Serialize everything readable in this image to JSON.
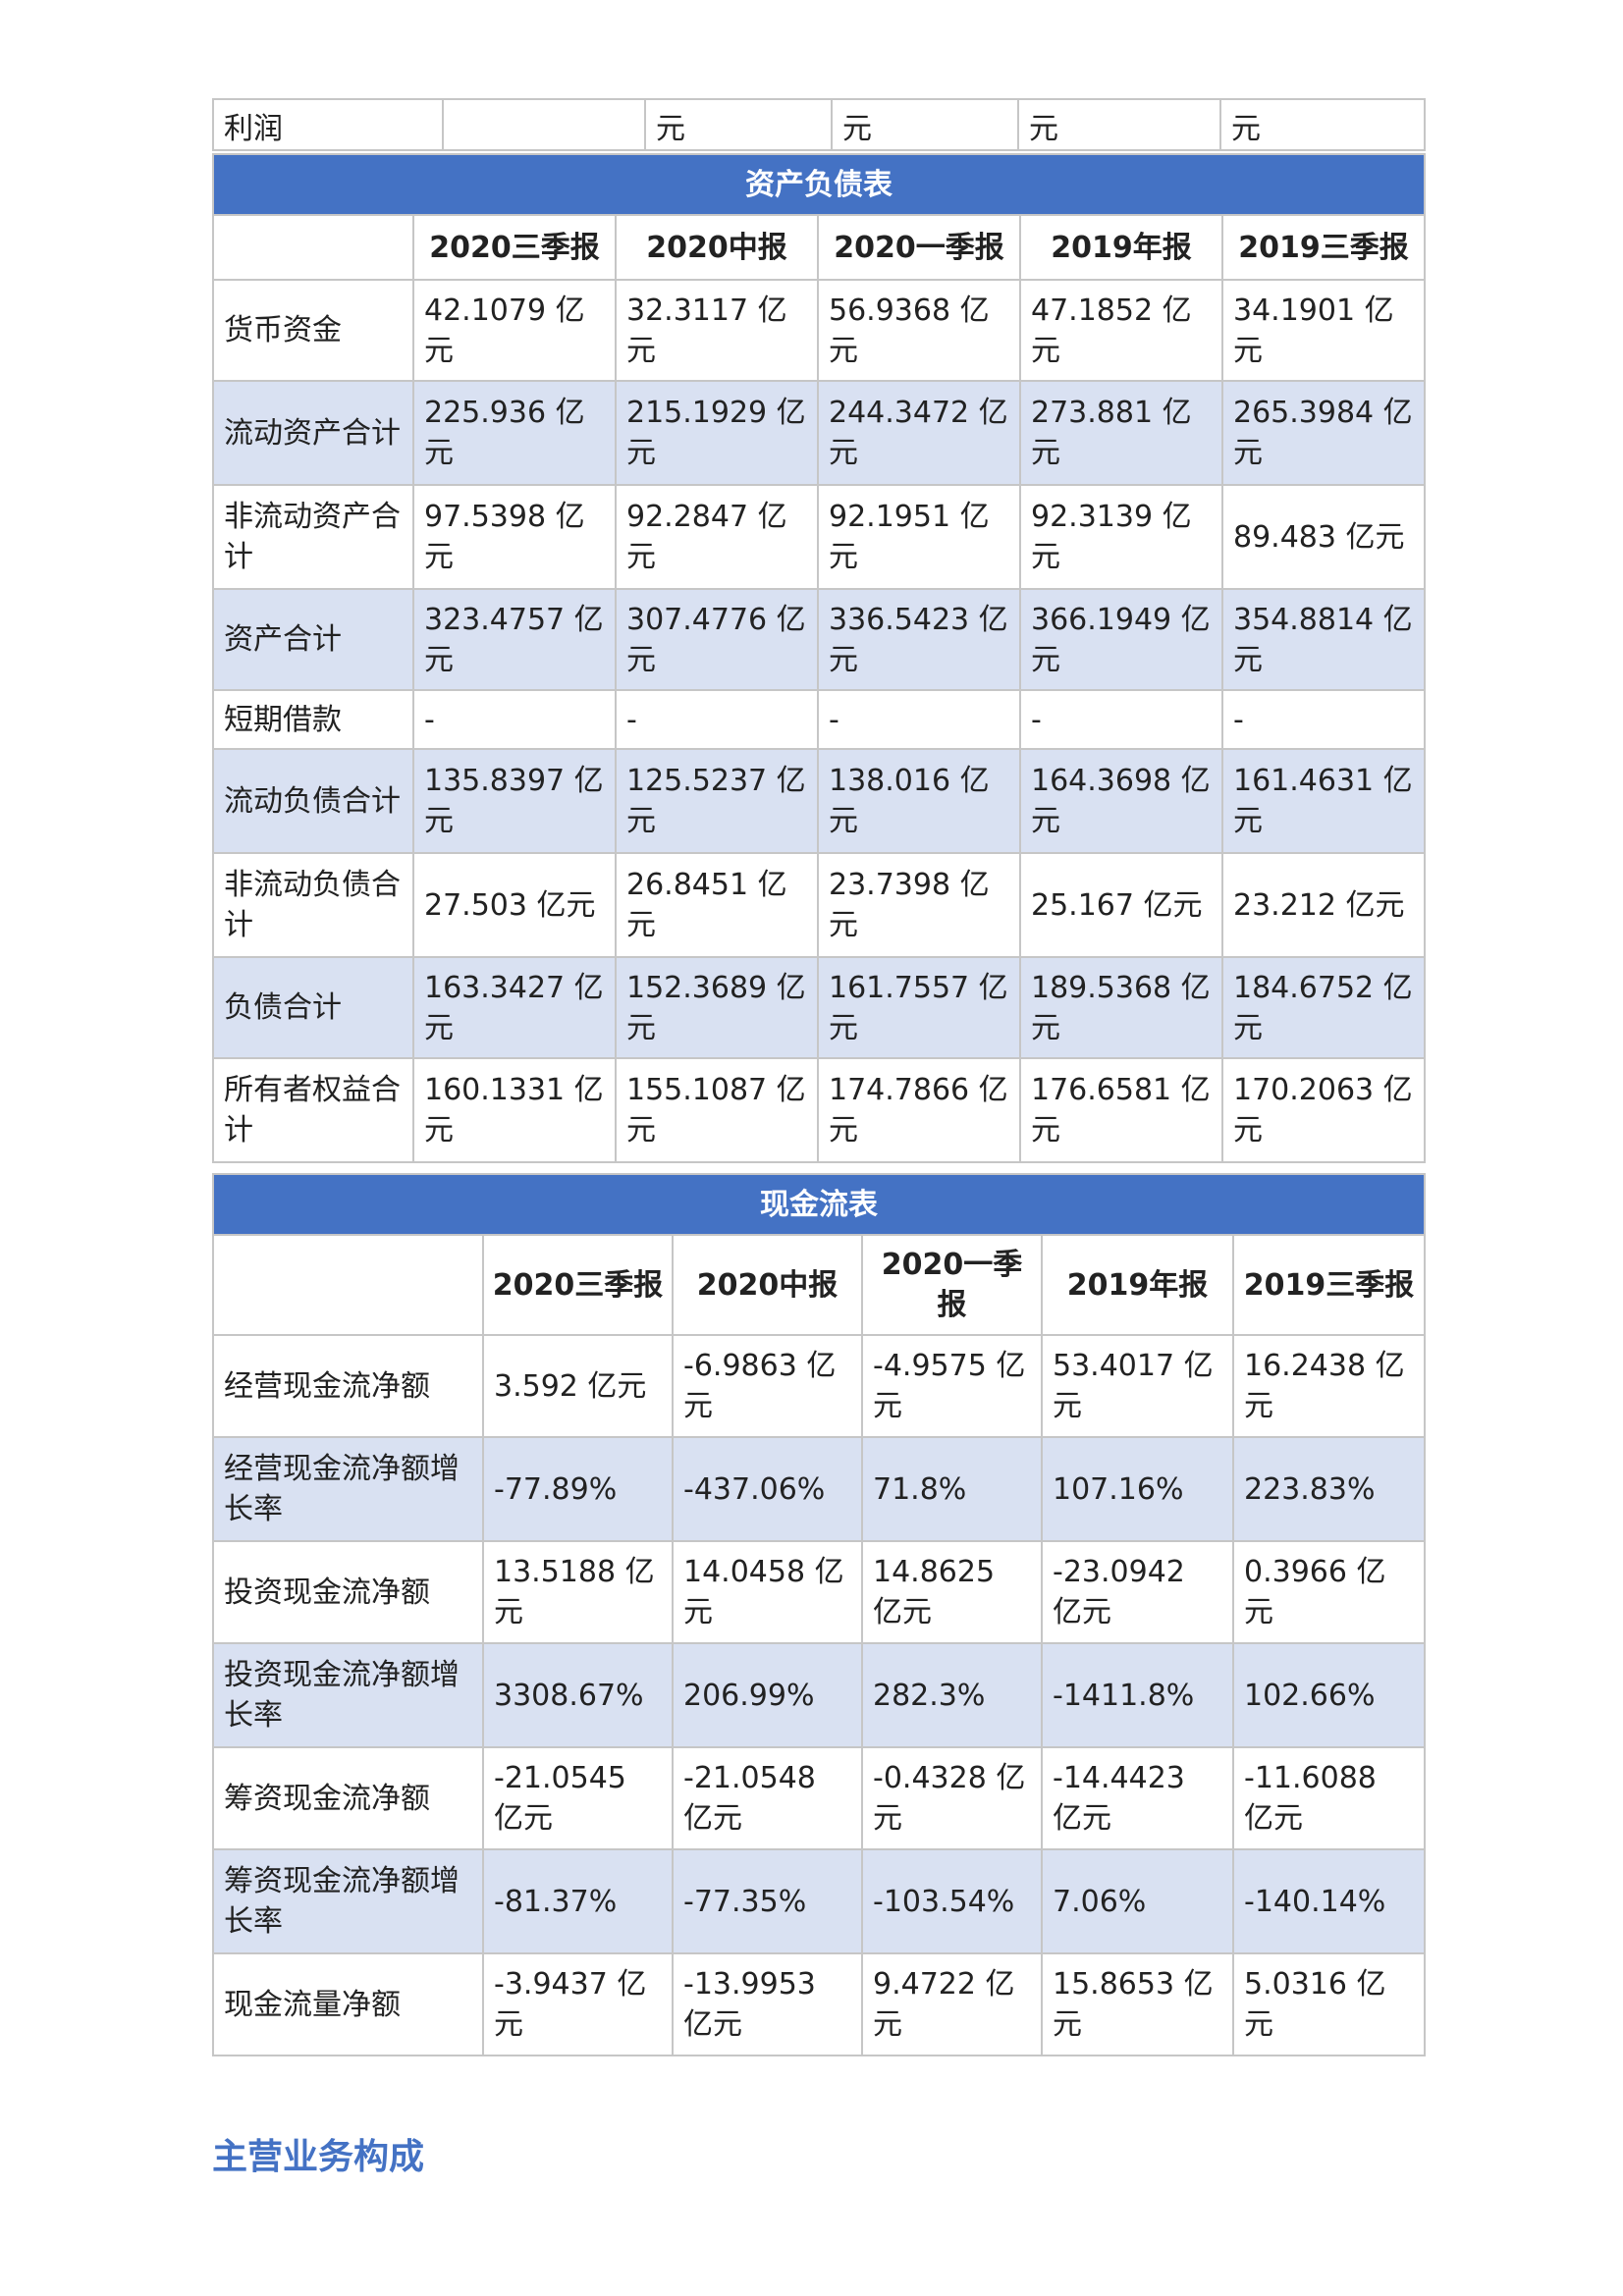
{
  "top_fragment": {
    "label": "利润",
    "cells": [
      "",
      "元",
      "元",
      "元",
      "元"
    ]
  },
  "balance_sheet": {
    "title": "资产负债表",
    "columns": [
      "2020三季报",
      "2020中报",
      "2020一季报",
      "2019年报",
      "2019三季报"
    ],
    "rows": [
      {
        "label": "货币资金",
        "values": [
          "42.1079 亿元",
          "32.3117 亿元",
          "56.9368 亿元",
          "47.1852 亿元",
          "34.1901 亿元"
        ]
      },
      {
        "label": "流动资产合计",
        "values": [
          "225.936 亿元",
          "215.1929 亿元",
          "244.3472 亿元",
          "273.881 亿元",
          "265.3984 亿元"
        ]
      },
      {
        "label": "非流动资产合计",
        "values": [
          "97.5398 亿元",
          "92.2847 亿元",
          "92.1951 亿元",
          "92.3139 亿元",
          "89.483 亿元"
        ]
      },
      {
        "label": "资产合计",
        "values": [
          "323.4757 亿元",
          "307.4776 亿元",
          "336.5423 亿元",
          "366.1949 亿元",
          "354.8814 亿元"
        ]
      },
      {
        "label": "短期借款",
        "values": [
          "-",
          "-",
          "-",
          "-",
          "-"
        ]
      },
      {
        "label": "流动负债合计",
        "values": [
          "135.8397 亿元",
          "125.5237 亿元",
          "138.016 亿元",
          "164.3698 亿元",
          "161.4631 亿元"
        ]
      },
      {
        "label": "非流动负债合计",
        "values": [
          "27.503 亿元",
          "26.8451 亿元",
          "23.7398 亿元",
          "25.167 亿元",
          "23.212 亿元"
        ]
      },
      {
        "label": "负债合计",
        "values": [
          "163.3427 亿元",
          "152.3689 亿元",
          "161.7557 亿元",
          "189.5368 亿元",
          "184.6752 亿元"
        ]
      },
      {
        "label": "所有者权益合计",
        "values": [
          "160.1331 亿元",
          "155.1087 亿元",
          "174.7866 亿元",
          "176.6581 亿元",
          "170.2063 亿元"
        ]
      }
    ]
  },
  "cash_flow": {
    "title": "现金流表",
    "columns": [
      "2020三季报",
      "2020中报",
      "2020一季报",
      "2019年报",
      "2019三季报"
    ],
    "rows": [
      {
        "label": "经营现金流净额",
        "values": [
          "3.592 亿元",
          "-6.9863 亿元",
          "-4.9575 亿元",
          "53.4017 亿元",
          "16.2438 亿元"
        ]
      },
      {
        "label": "经营现金流净额增长率",
        "values": [
          "-77.89%",
          "-437.06%",
          "71.8%",
          "107.16%",
          "223.83%"
        ]
      },
      {
        "label": "投资现金流净额",
        "values": [
          "13.5188 亿元",
          "14.0458 亿元",
          "14.8625 亿元",
          "-23.0942 亿元",
          "0.3966 亿元"
        ]
      },
      {
        "label": "投资现金流净额增长率",
        "values": [
          "3308.67%",
          "206.99%",
          "282.3%",
          "-1411.8%",
          "102.66%"
        ]
      },
      {
        "label": "筹资现金流净额",
        "values": [
          "-21.0545 亿元",
          "-21.0548 亿元",
          "-0.4328 亿元",
          "-14.4423 亿元",
          "-11.6088 亿元"
        ]
      },
      {
        "label": "筹资现金流净额增长率",
        "values": [
          "-81.37%",
          "-77.35%",
          "-103.54%",
          "7.06%",
          "-140.14%"
        ]
      },
      {
        "label": "现金流量净额",
        "values": [
          "-3.9437 亿元",
          "-13.9953 亿元",
          "9.4722 亿元",
          "15.8653 亿元",
          "5.0316 亿元"
        ]
      }
    ]
  },
  "main_business_heading": "主营业务构成"
}
